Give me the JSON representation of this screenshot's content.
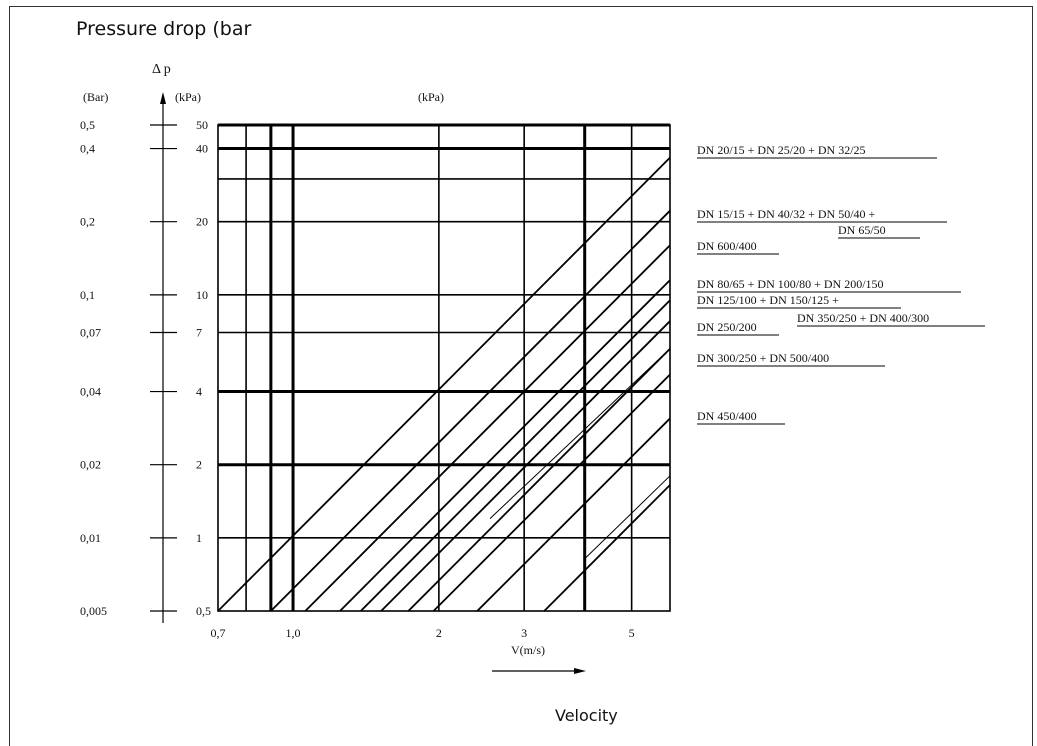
{
  "header": {
    "title": "Pressure drop (bar"
  },
  "footer": {
    "label": "Velocity"
  },
  "chart_data": {
    "type": "line",
    "scale": "log-log",
    "grid": true,
    "axis_symbol": "Δ p",
    "ylabel_bar": "(Bar)",
    "ylabel_kpa": "(kPa)",
    "top_label": "(kPa)",
    "xlabel": "V(m/s)",
    "x_range": [
      0.7,
      6.0
    ],
    "y_range_kpa": [
      0.5,
      50
    ],
    "y_ticks_kpa": [
      {
        "kpa": 50,
        "bar": "0,5",
        "label": "50"
      },
      {
        "kpa": 40,
        "bar": "0,4",
        "label": "40"
      },
      {
        "kpa": 20,
        "bar": "0,2",
        "label": "20"
      },
      {
        "kpa": 10,
        "bar": "0,1",
        "label": "10"
      },
      {
        "kpa": 7,
        "bar": "0,07",
        "label": "7"
      },
      {
        "kpa": 4,
        "bar": "0,04",
        "label": "4"
      },
      {
        "kpa": 2,
        "bar": "0,02",
        "label": "2"
      },
      {
        "kpa": 1,
        "bar": "0,01",
        "label": "1"
      },
      {
        "kpa": 0.5,
        "bar": "0,005",
        "label": "0,5"
      }
    ],
    "y_gridlines_kpa": [
      {
        "v": 50,
        "bold": true
      },
      {
        "v": 40,
        "bold": true
      },
      {
        "v": 30,
        "bold": false
      },
      {
        "v": 20,
        "bold": false
      },
      {
        "v": 10,
        "bold": false
      },
      {
        "v": 7,
        "bold": false
      },
      {
        "v": 4,
        "bold": true
      },
      {
        "v": 2,
        "bold": true
      },
      {
        "v": 1,
        "bold": false
      }
    ],
    "x_ticks": [
      {
        "v": 0.7,
        "label": "0,7"
      },
      {
        "v": 1.0,
        "label": "1,0"
      },
      {
        "v": 2,
        "label": "2"
      },
      {
        "v": 3,
        "label": "3"
      },
      {
        "v": 5,
        "label": "5"
      }
    ],
    "x_gridlines": [
      {
        "v": 0.8,
        "bold": false
      },
      {
        "v": 0.9,
        "bold": true
      },
      {
        "v": 1.0,
        "bold": true
      },
      {
        "v": 2.0,
        "bold": false
      },
      {
        "v": 3.0,
        "bold": false
      },
      {
        "v": 4.0,
        "bold": true
      },
      {
        "v": 5.0,
        "bold": false
      }
    ],
    "series": [
      {
        "name": "DN 20/15 + DN 25/20 + DN 32/25",
        "points": [
          [
            0.7,
            0.5
          ],
          [
            6.0,
            36.7
          ]
        ],
        "thin": false
      },
      {
        "name": "DN 15/15 + DN 40/32 + DN 50/40 + DN 65/50",
        "points": [
          [
            0.9,
            0.5
          ],
          [
            6.0,
            22.2
          ]
        ],
        "thin": false
      },
      {
        "name": "DN 600/400",
        "points": [
          [
            1.06,
            0.5
          ],
          [
            6.0,
            16.0
          ]
        ],
        "thin": false
      },
      {
        "name": "DN 80/65 + DN 100/80 + DN 200/150",
        "points": [
          [
            1.25,
            0.5
          ],
          [
            6.0,
            11.5
          ]
        ],
        "thin": false
      },
      {
        "name": "DN 125/100 + DN 150/125 + DN 350/250 + DN 400/300",
        "points": [
          [
            1.38,
            0.5
          ],
          [
            6.0,
            9.5
          ]
        ],
        "thin": false
      },
      {
        "name": "DN 250/200",
        "points": [
          [
            1.52,
            0.5
          ],
          [
            6.0,
            7.8
          ]
        ],
        "thin": false
      },
      {
        "name": "DN 300/250 + DN 500/400",
        "points": [
          [
            1.73,
            0.5
          ],
          [
            6.0,
            6.0
          ]
        ],
        "thin": false
      },
      {
        "name": "",
        "points": [
          [
            1.95,
            0.5
          ],
          [
            6.0,
            4.7
          ]
        ],
        "thin": false
      },
      {
        "name": "",
        "points": [
          [
            2.55,
            1.2
          ],
          [
            6.0,
            6.0
          ]
        ],
        "thin": true
      },
      {
        "name": "",
        "points": [
          [
            2.4,
            0.5
          ],
          [
            6.0,
            3.1
          ]
        ],
        "thin": false
      },
      {
        "name": "DN 450/400",
        "points": [
          [
            3.3,
            0.5
          ],
          [
            6.0,
            1.65
          ]
        ],
        "thin": false
      },
      {
        "name": "",
        "points": [
          [
            4.0,
            0.82
          ],
          [
            6.0,
            1.8
          ]
        ],
        "thin": true
      }
    ],
    "legend": [
      {
        "lines": [
          "DN 20/15 + DN 25/20 + DN 32/25"
        ]
      },
      {
        "lines": [
          "DN 15/15 + DN 40/32 + DN 50/40 +",
          "DN 65/50"
        ]
      },
      {
        "lines": [
          "DN 600/400"
        ]
      },
      {
        "lines": [
          "DN 80/65 + DN 100/80 + DN 200/150"
        ]
      },
      {
        "lines": [
          "DN 125/100 + DN 150/125 +",
          "DN 350/250 + DN 400/300"
        ]
      },
      {
        "lines": [
          "DN 250/200"
        ]
      },
      {
        "lines": [
          "DN 300/250 + DN 500/400"
        ]
      },
      {
        "lines": [
          "DN 450/400"
        ]
      }
    ]
  }
}
